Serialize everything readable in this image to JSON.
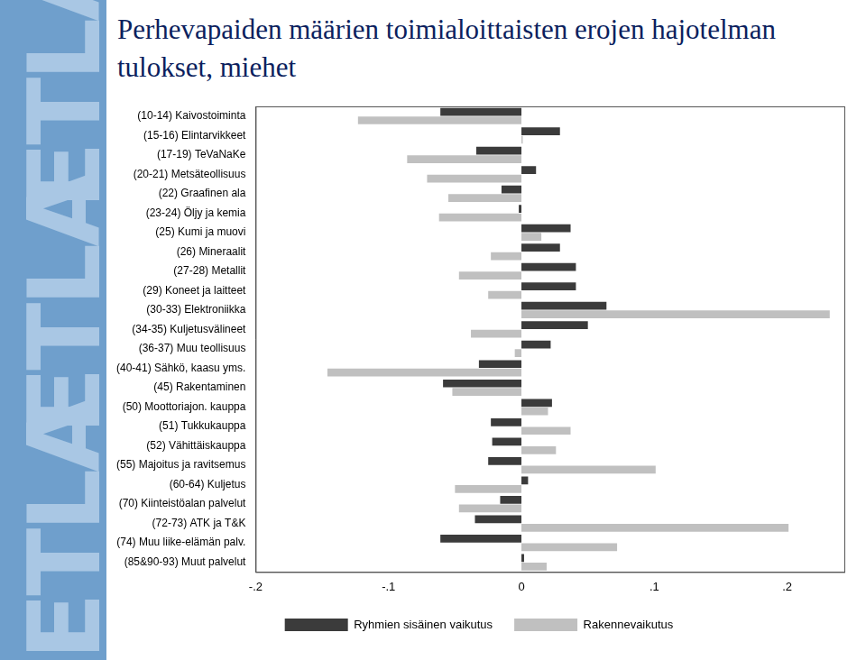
{
  "logo": "ETLA",
  "chart_data": {
    "type": "bar",
    "orientation": "horizontal",
    "title": "Perhevapaiden määrien toimialoittaisten erojen hajotelman tulokset, miehet",
    "categories": [
      "(10-14) Kaivostoiminta",
      "(15-16) Elintarvikkeet",
      "(17-19) TeVaNaKe",
      "(20-21) Metsäteollisuus",
      "(22) Graafinen ala",
      "(23-24) Öljy ja kemia",
      "(25) Kumi ja muovi",
      "(26) Mineraalit",
      "(27-28) Metallit",
      "(29) Koneet ja laitteet",
      "(30-33) Elektroniikka",
      "(34-35) Kuljetusvälineet",
      "(36-37) Muu teollisuus",
      "(40-41) Sähkö, kaasu yms.",
      "(45) Rakentaminen",
      "(50) Moottoriajon. kauppa",
      "(51) Tukkukauppa",
      "(52) Vähittäiskauppa",
      "(55) Majoitus ja ravitsemus",
      "(60-64) Kuljetus",
      "(70) Kiinteistöalan palvelut",
      "(72-73) ATK ja T&K",
      "(74) Muu liike-elämän palv.",
      "(85&90-93) Muut palvelut"
    ],
    "series": [
      {
        "name": "Ryhmien sisäinen vaikutus",
        "color": "#3b3b3b",
        "values": [
          -0.061,
          0.029,
          -0.034,
          0.011,
          -0.015,
          -0.002,
          0.037,
          0.029,
          0.041,
          0.041,
          0.064,
          0.05,
          0.022,
          -0.032,
          -0.059,
          0.023,
          -0.023,
          -0.022,
          -0.025,
          0.005,
          -0.016,
          -0.035,
          -0.061,
          0.002
        ]
      },
      {
        "name": "Rakennevaikutus",
        "color": "#c0c0c0",
        "values": [
          -0.123,
          0.001,
          -0.086,
          -0.071,
          -0.055,
          -0.062,
          0.015,
          -0.023,
          -0.047,
          -0.025,
          0.232,
          -0.038,
          -0.005,
          -0.146,
          -0.052,
          0.02,
          0.037,
          0.026,
          0.101,
          -0.05,
          -0.047,
          0.201,
          0.072,
          0.019
        ]
      }
    ],
    "xlim": [
      -0.2,
      0.243
    ],
    "xticks": [
      {
        "value": -0.2,
        "label": "-.2"
      },
      {
        "value": -0.1,
        "label": "-.1"
      },
      0,
      {
        "value": 0.1,
        "label": ".1"
      },
      {
        "value": 0.2,
        "label": ".2"
      }
    ],
    "grid": false,
    "legend": "bottom"
  }
}
